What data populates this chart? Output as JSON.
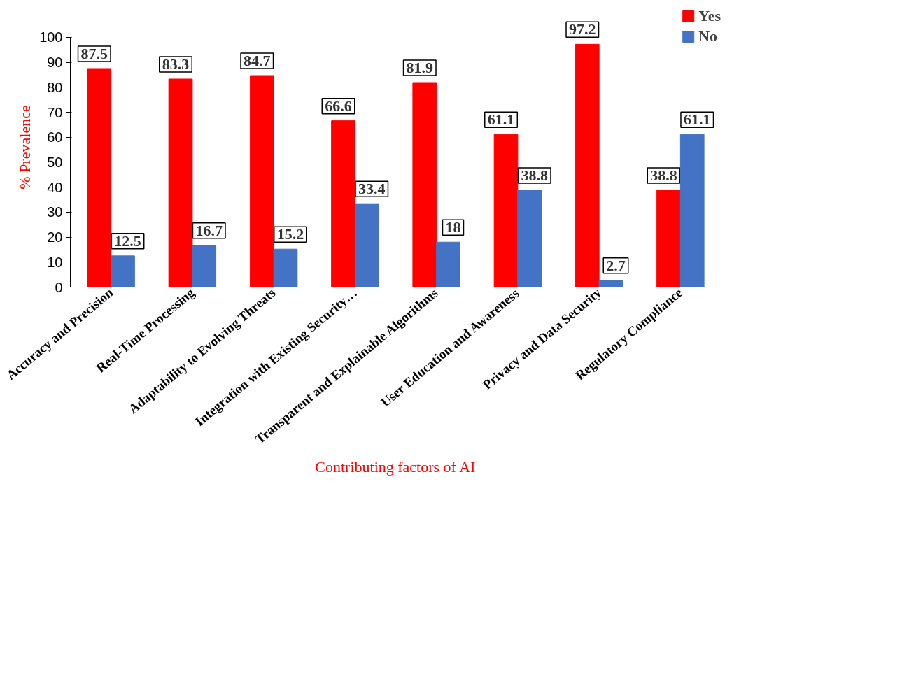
{
  "chart_data": {
    "type": "bar",
    "xlabel": "Contributing factors of AI",
    "ylabel": "% Prevalence",
    "categories": [
      "Accuracy and Precision",
      "Real-Time Processing",
      "Adaptability to Evolving Threats",
      "Integration with Existing Security…",
      "Transparent and Explainable Algorithms",
      "User Education and Awareness",
      "Privacy and Data Security",
      "Regulatory Compliance"
    ],
    "series": [
      {
        "name": "Yes",
        "color": "#ff0000",
        "values": [
          87.5,
          83.3,
          84.7,
          66.6,
          81.9,
          61.1,
          97.2,
          38.8
        ]
      },
      {
        "name": "No",
        "color": "#4472c4",
        "values": [
          12.5,
          16.7,
          15.2,
          33.4,
          18,
          38.8,
          2.7,
          61.1
        ]
      }
    ],
    "ylim": [
      0,
      100
    ],
    "yticks": [
      0,
      10,
      20,
      30,
      40,
      50,
      60,
      70,
      80,
      90,
      100
    ],
    "grid": false,
    "legend": "top right",
    "data_labels": true
  }
}
